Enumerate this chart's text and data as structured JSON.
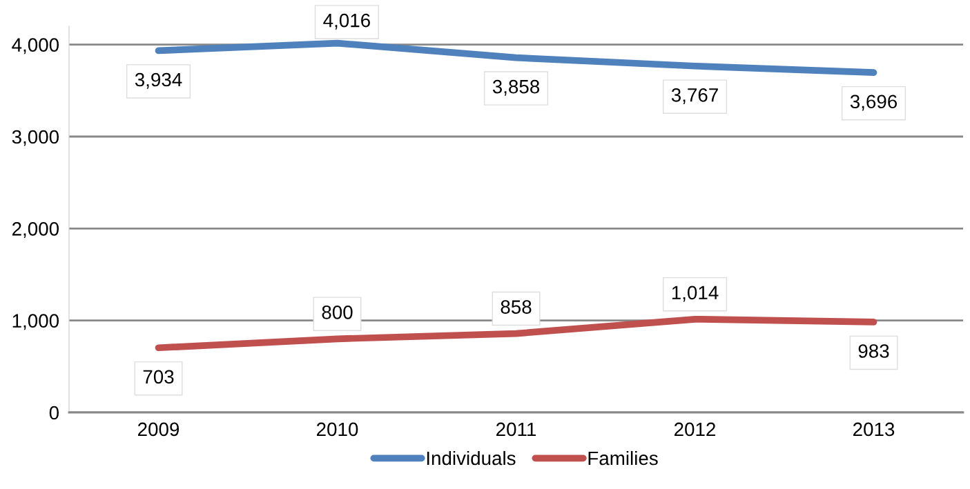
{
  "chart_data": {
    "type": "line",
    "categories": [
      "2009",
      "2010",
      "2011",
      "2012",
      "2013"
    ],
    "series": [
      {
        "name": "Individuals",
        "color": "#4f81bd",
        "values": [
          3934,
          4016,
          3858,
          3767,
          3696
        ],
        "value_labels": [
          "3,934",
          "4,016",
          "3,858",
          "3,767",
          "3,696"
        ]
      },
      {
        "name": "Families",
        "color": "#c0504d",
        "values": [
          703,
          800,
          858,
          1014,
          983
        ],
        "value_labels": [
          "703",
          "800",
          "858",
          "1,014",
          "983"
        ]
      }
    ],
    "ylim": [
      0,
      4200
    ],
    "yticks": [
      {
        "value": 0,
        "label": "0"
      },
      {
        "value": 1000,
        "label": "1,000"
      },
      {
        "value": 2000,
        "label": "2,000"
      },
      {
        "value": 3000,
        "label": "3,000"
      },
      {
        "value": 4000,
        "label": "4,000"
      }
    ],
    "grid": "y",
    "legend": "bottom",
    "marker": "none",
    "line_style": "solid"
  }
}
